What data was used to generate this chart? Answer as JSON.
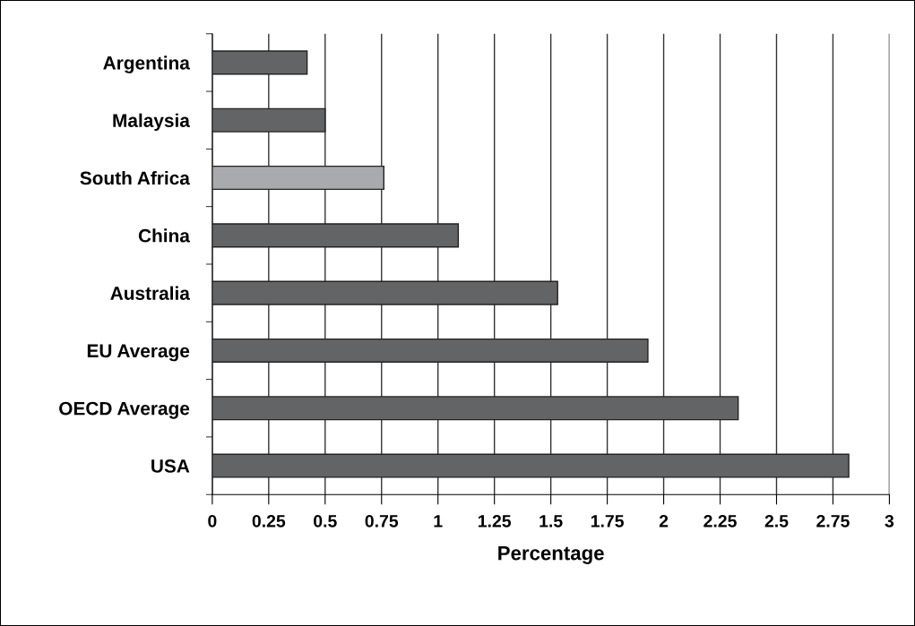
{
  "chart_data": {
    "type": "bar",
    "orientation": "horizontal",
    "xlabel": "Percentage",
    "categories": [
      "Argentina",
      "Malaysia",
      "South Africa",
      "China",
      "Australia",
      "EU Average",
      "OECD Average",
      "USA"
    ],
    "values": [
      0.42,
      0.5,
      0.76,
      1.09,
      1.53,
      1.93,
      2.33,
      2.82
    ],
    "colors": [
      "#636466",
      "#636466",
      "#a9aaad",
      "#636466",
      "#636466",
      "#636466",
      "#636466",
      "#636466"
    ],
    "xlim": [
      0,
      3
    ],
    "xticks": [
      0,
      0.25,
      0.5,
      0.75,
      1,
      1.25,
      1.5,
      1.75,
      2,
      2.25,
      2.5,
      2.75,
      3
    ],
    "grid": "x"
  }
}
